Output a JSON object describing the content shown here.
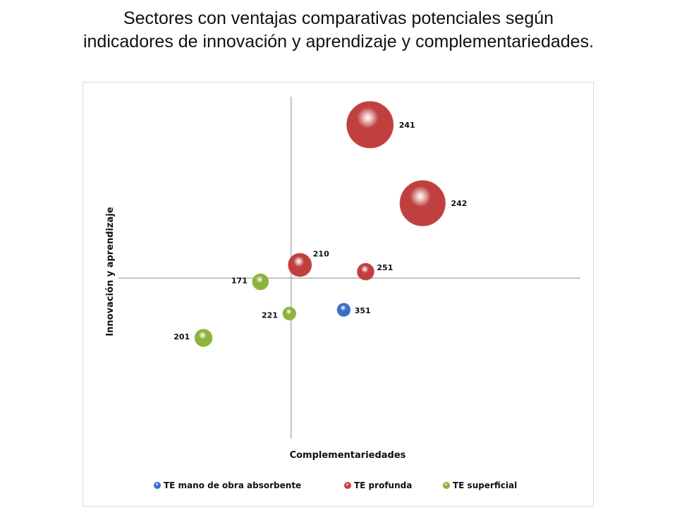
{
  "title_line1": "Sectores con ventajas comparativas potenciales según",
  "title_line2": "indicadores de innovación y aprendizaje y complementariedades.",
  "chart_data": {
    "type": "bubble",
    "xlabel": "Complementariedades",
    "ylabel": "Innovación y aprendizaje",
    "grid": false,
    "legend_position": "bottom",
    "series": [
      {
        "name": "TE mano de obra absorbente",
        "color": "#3a6fc4",
        "points": [
          {
            "label": "351",
            "x": 0.6,
            "y": -0.85,
            "size": 8
          }
        ]
      },
      {
        "name": "TE profunda",
        "color": "#c0403f",
        "points": [
          {
            "label": "241",
            "x": 0.9,
            "y": 4.1,
            "size": 100
          },
          {
            "label": "242",
            "x": 1.5,
            "y": 2.0,
            "size": 95
          },
          {
            "label": "210",
            "x": 0.1,
            "y": 0.35,
            "size": 25
          },
          {
            "label": "251",
            "x": 0.85,
            "y": 0.17,
            "size": 13
          }
        ]
      },
      {
        "name": "TE superficial",
        "color": "#8cb33a",
        "points": [
          {
            "label": "171",
            "x": -0.35,
            "y": -0.1,
            "size": 12
          },
          {
            "label": "221",
            "x": -0.02,
            "y": -0.95,
            "size": 8
          },
          {
            "label": "201",
            "x": -1.0,
            "y": -1.6,
            "size": 14
          }
        ]
      }
    ]
  }
}
